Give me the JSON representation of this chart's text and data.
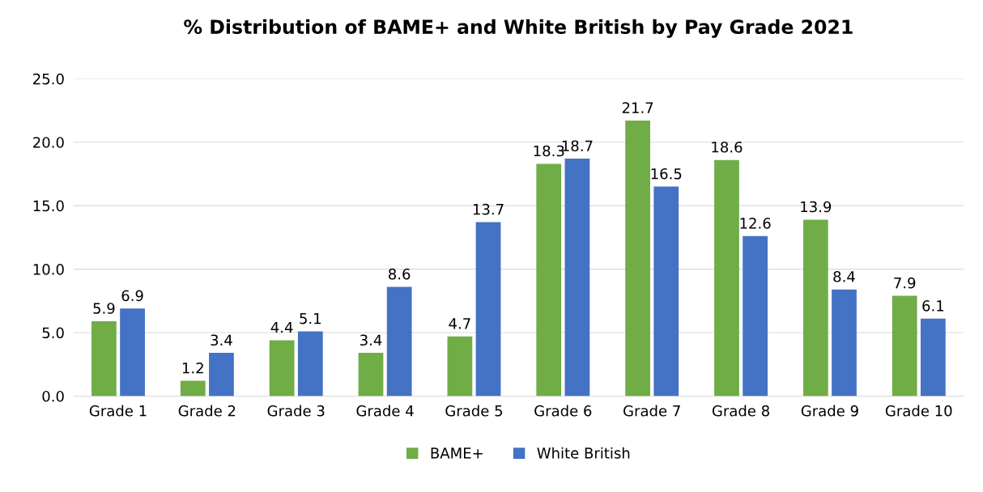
{
  "chart_data": {
    "type": "bar",
    "title": "% Distribution of BAME+ and White British by Pay Grade 2021",
    "categories": [
      "Grade 1",
      "Grade 2",
      "Grade 3",
      "Grade 4",
      "Grade 5",
      "Grade 6",
      "Grade 7",
      "Grade 8",
      "Grade 9",
      "Grade 10"
    ],
    "series": [
      {
        "name": "BAME+",
        "color": "#70ad47",
        "values": [
          5.9,
          1.2,
          4.4,
          3.4,
          4.7,
          18.3,
          21.7,
          18.6,
          13.9,
          7.9
        ]
      },
      {
        "name": "White British",
        "color": "#4472c4",
        "values": [
          6.9,
          3.4,
          5.1,
          8.6,
          13.7,
          18.7,
          16.5,
          12.6,
          8.4,
          6.1
        ]
      }
    ],
    "ylim": [
      0,
      25
    ],
    "yticks": [
      {
        "value": 0,
        "label": "0.0"
      },
      {
        "value": 5,
        "label": "5.0"
      },
      {
        "value": 10,
        "label": "10.0"
      },
      {
        "value": 15,
        "label": "15.0"
      },
      {
        "value": 20,
        "label": "20.0"
      },
      {
        "value": 25,
        "label": "25.0"
      }
    ],
    "grid": "y",
    "legend": "bottom",
    "data_labels": true
  }
}
